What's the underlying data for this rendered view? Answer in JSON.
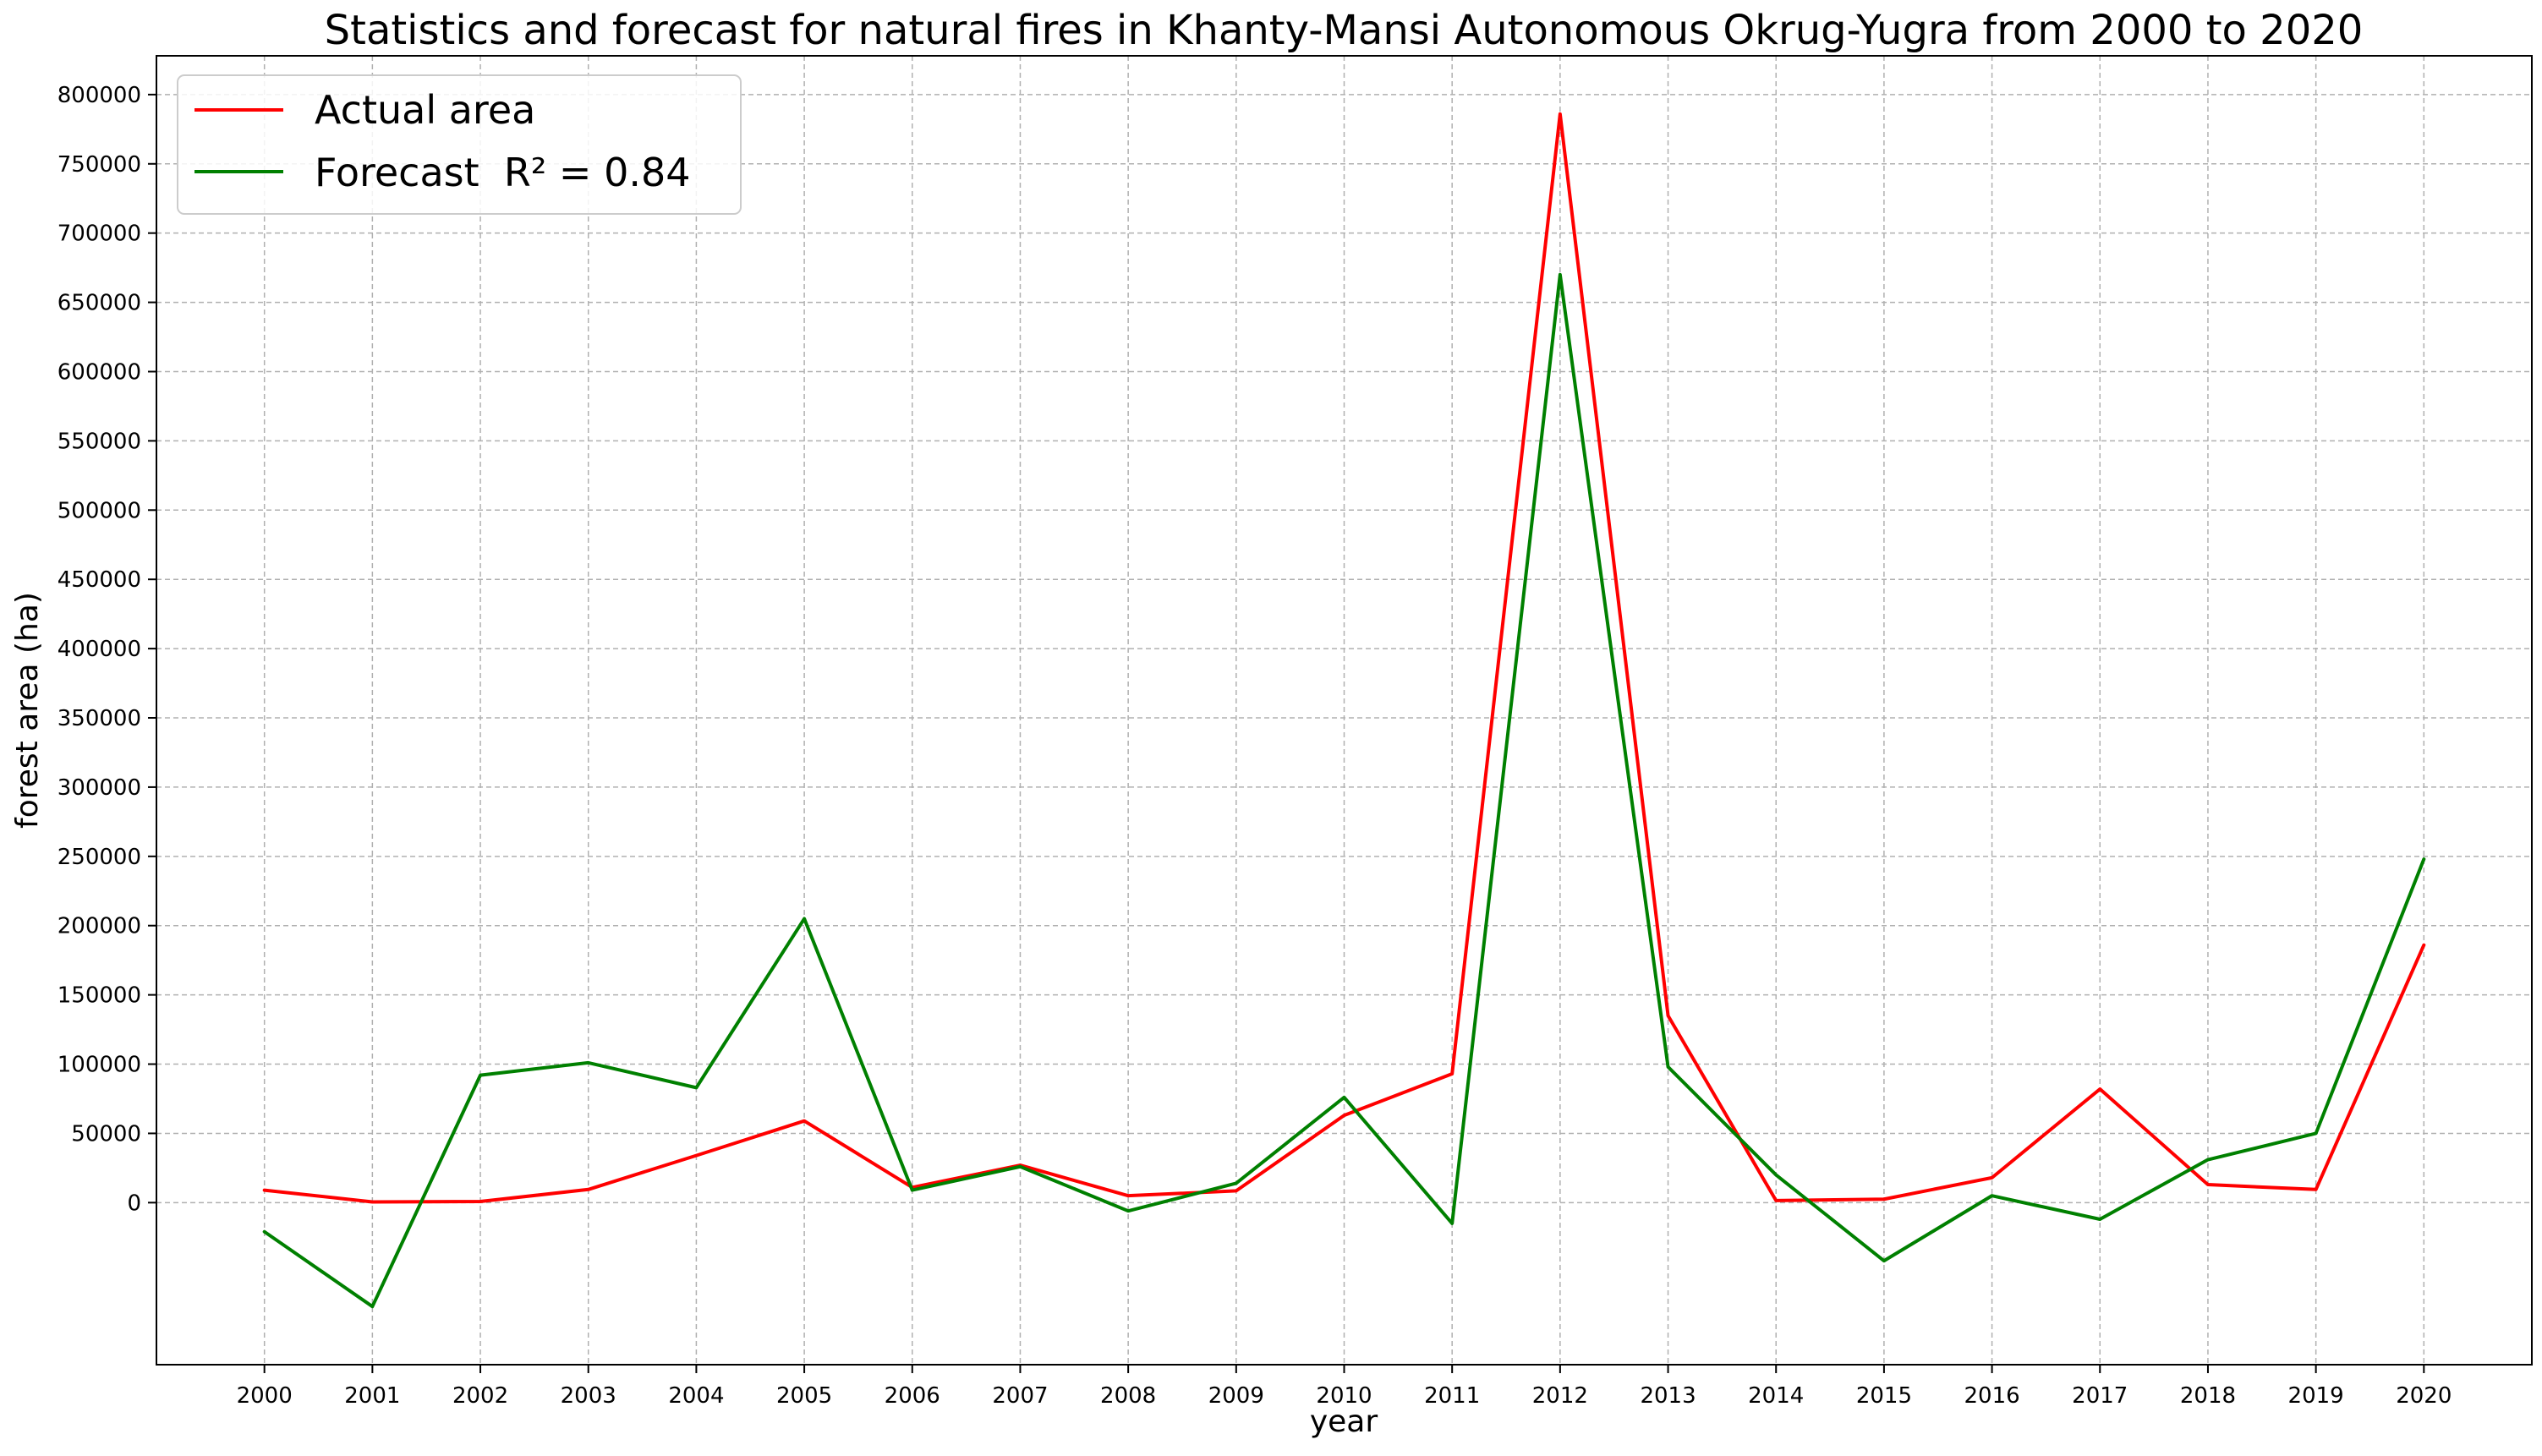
{
  "chart_data": {
    "type": "line",
    "title": "Statistics and forecast for natural fires in Khanty-Mansi Autonomous Okrug-Yugra from 2000 to 2020",
    "xlabel": "year",
    "ylabel": "forest area (ha)",
    "x": [
      2000,
      2001,
      2002,
      2003,
      2004,
      2005,
      2006,
      2007,
      2008,
      2009,
      2010,
      2011,
      2012,
      2013,
      2014,
      2015,
      2016,
      2017,
      2018,
      2019,
      2020
    ],
    "series": [
      {
        "name": "Actual area",
        "color": "#ff0000",
        "values": [
          9000,
          500,
          800,
          9500,
          34000,
          59000,
          11000,
          27000,
          5000,
          8500,
          63000,
          93000,
          786000,
          135000,
          1500,
          2500,
          18000,
          82000,
          13000,
          9500,
          186000
        ]
      },
      {
        "name": "Forecast  R² = 0.84",
        "color": "#008000",
        "values": [
          -21000,
          -75000,
          92000,
          101000,
          83000,
          205000,
          9000,
          26000,
          -6000,
          14000,
          76000,
          -15000,
          670000,
          98000,
          20000,
          -42000,
          5000,
          -12000,
          31000,
          50000,
          248000
        ]
      }
    ],
    "ylim": [
      -117000,
      828000
    ],
    "yticks": [
      0,
      50000,
      100000,
      150000,
      200000,
      250000,
      300000,
      350000,
      400000,
      450000,
      500000,
      550000,
      600000,
      650000,
      700000,
      750000,
      800000
    ],
    "xlim": [
      1999,
      2021
    ],
    "grid": true,
    "grid_color": "#b0b0b0",
    "legend_position": "upper-left"
  }
}
